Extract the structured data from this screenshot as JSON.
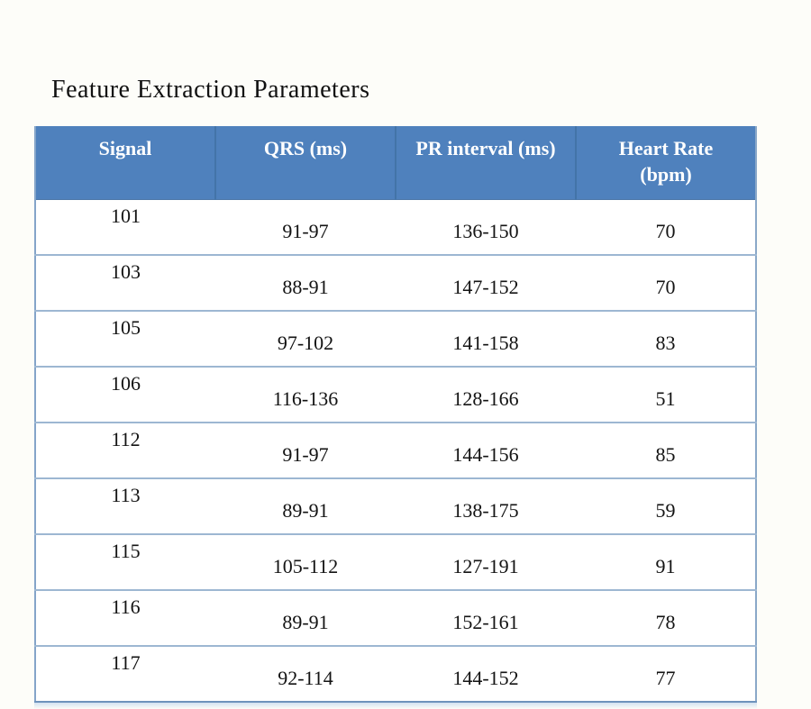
{
  "title": "Feature Extraction Parameters",
  "table": {
    "columns": [
      "Signal",
      "QRS (ms)",
      "PR interval (ms)",
      "Heart Rate (bpm)"
    ],
    "rows": [
      [
        "101",
        "91-97",
        "136-150",
        "70"
      ],
      [
        "103",
        "88-91",
        "147-152",
        "70"
      ],
      [
        "105",
        "97-102",
        "141-158",
        "83"
      ],
      [
        "106",
        "116-136",
        "128-166",
        "51"
      ],
      [
        "112",
        "91-97",
        "144-156",
        "85"
      ],
      [
        "113",
        "89-91",
        "138-175",
        "59"
      ],
      [
        "115",
        "105-112",
        "127-191",
        "91"
      ],
      [
        "116",
        "89-91",
        "152-161",
        "78"
      ],
      [
        "117",
        "92-114",
        "144-152",
        "77"
      ]
    ],
    "colors": {
      "header_bg": "#4f81bd",
      "header_text": "#ffffff",
      "header_divider": "#4374a8",
      "row_border": "#9db7d2",
      "outer_border": "#85a5c9",
      "body_text": "#131313",
      "slide_bg": "#fdfdf9"
    }
  },
  "chart_data": {
    "type": "table",
    "title": "Feature Extraction Parameters",
    "columns": [
      "Signal",
      "QRS (ms)",
      "PR interval (ms)",
      "Heart Rate (bpm)"
    ],
    "rows": [
      [
        "101",
        "91-97",
        "136-150",
        "70"
      ],
      [
        "103",
        "88-91",
        "147-152",
        "70"
      ],
      [
        "105",
        "97-102",
        "141-158",
        "83"
      ],
      [
        "106",
        "116-136",
        "128-166",
        "51"
      ],
      [
        "112",
        "91-97",
        "144-156",
        "85"
      ],
      [
        "113",
        "89-91",
        "138-175",
        "59"
      ],
      [
        "115",
        "105-112",
        "127-191",
        "91"
      ],
      [
        "116",
        "89-91",
        "152-161",
        "78"
      ],
      [
        "117",
        "92-114",
        "144-152",
        "77"
      ]
    ]
  }
}
